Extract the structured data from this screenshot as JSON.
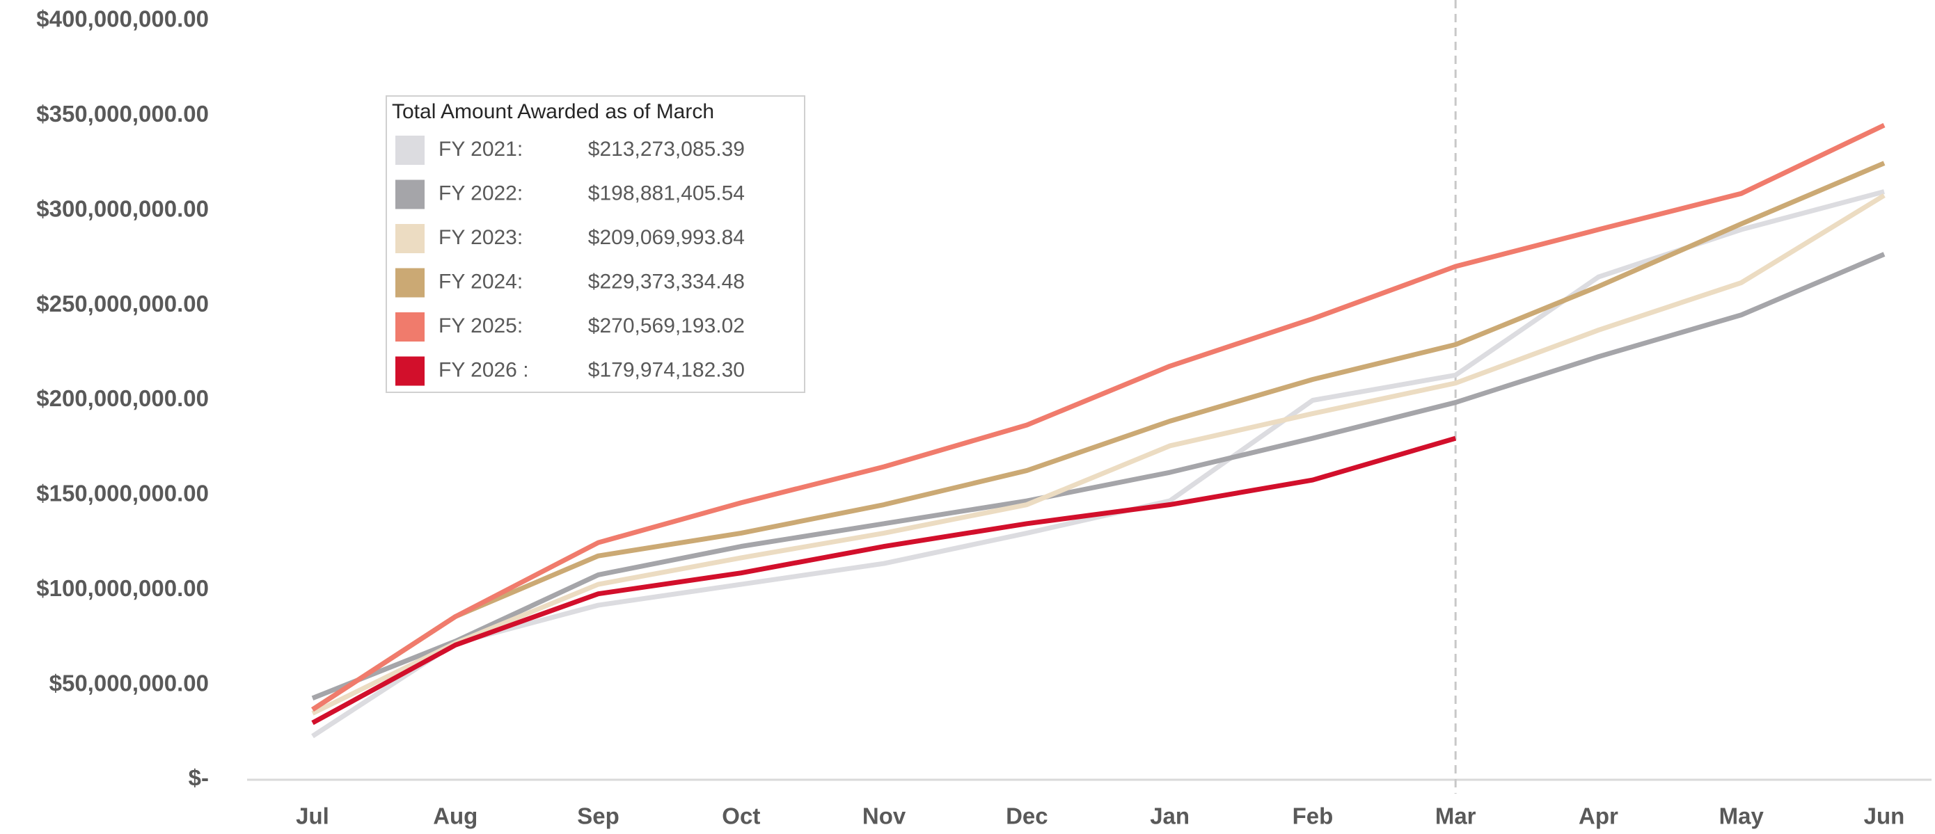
{
  "chart_data": {
    "type": "line",
    "categories": [
      "Jul",
      "Aug",
      "Sep",
      "Oct",
      "Nov",
      "Dec",
      "Jan",
      "Feb",
      "Mar",
      "Apr",
      "May",
      "Jun"
    ],
    "ylim": [
      0,
      400000000
    ],
    "yticks": [
      {
        "value": 0,
        "label": "$-"
      },
      {
        "value": 50000000,
        "label": "$50,000,000.00"
      },
      {
        "value": 100000000,
        "label": "$100,000,000.00"
      },
      {
        "value": 150000000,
        "label": "$150,000,000.00"
      },
      {
        "value": 200000000,
        "label": "$200,000,000.00"
      },
      {
        "value": 250000000,
        "label": "$250,000,000.00"
      },
      {
        "value": 300000000,
        "label": "$300,000,000.00"
      },
      {
        "value": 350000000,
        "label": "$350,000,000.00"
      },
      {
        "value": 400000000,
        "label": "$400,000,000.00"
      }
    ],
    "grid": false,
    "legend_title": "Total Amount Awarded  as of March",
    "legend_position": "upper left",
    "reference_line_category": 8,
    "series": [
      {
        "name": "FY 2021:",
        "legend_value": "$213,273,085.39",
        "color": "#dcdce0",
        "values": [
          23000000,
          72000000,
          92000000,
          103000000,
          114000000,
          130000000,
          147000000,
          200000000,
          213273085.39,
          265000000,
          290000000,
          310000000
        ]
      },
      {
        "name": "FY 2022:",
        "legend_value": "$198,881,405.54",
        "color": "#a5a5a9",
        "values": [
          43000000,
          73000000,
          108000000,
          123000000,
          135000000,
          147000000,
          162000000,
          180000000,
          198881405.54,
          223000000,
          245000000,
          277000000
        ]
      },
      {
        "name": "FY 2023:",
        "legend_value": "$209,069,993.84",
        "color": "#ecdcc2",
        "values": [
          35000000,
          72000000,
          103000000,
          117000000,
          130000000,
          145000000,
          176000000,
          193000000,
          209069993.84,
          237000000,
          262000000,
          308000000
        ]
      },
      {
        "name": "FY 2024:",
        "legend_value": "$229,373,334.48",
        "color": "#cba974",
        "values": [
          37000000,
          86000000,
          118000000,
          130000000,
          145000000,
          163000000,
          189000000,
          211000000,
          229373334.48,
          260000000,
          293000000,
          325000000
        ]
      },
      {
        "name": "FY 2025:",
        "legend_value": "$270,569,193.02",
        "color": "#f07b6c",
        "values": [
          37000000,
          86000000,
          125000000,
          146000000,
          165000000,
          187000000,
          218000000,
          243000000,
          270569193.02,
          290000000,
          309000000,
          345000000
        ]
      },
      {
        "name": "FY 2026 :",
        "legend_value": "$179,974,182.30",
        "color": "#d20f2b",
        "values": [
          30000000,
          71000000,
          98000000,
          109000000,
          123000000,
          135000000,
          145000000,
          158000000,
          179974182.3,
          null,
          null,
          null
        ]
      }
    ]
  }
}
